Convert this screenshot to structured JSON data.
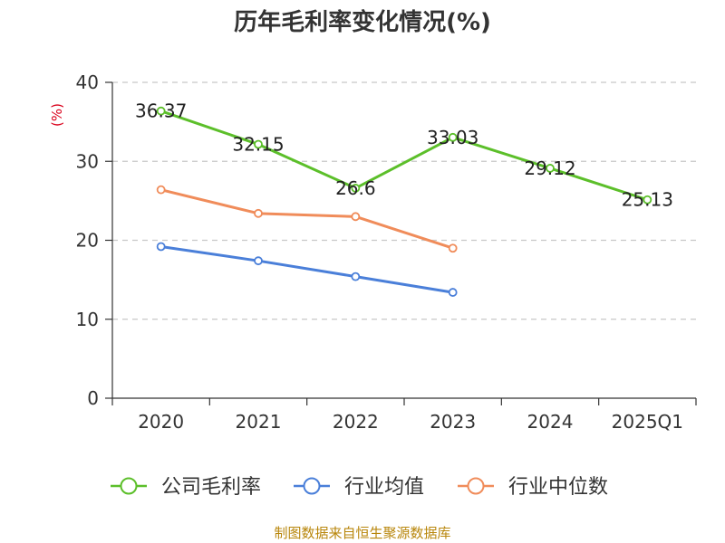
{
  "chart_data": {
    "type": "line",
    "title": "历年毛利率变化情况(%)",
    "ylabel": "(%)",
    "xlabel": "",
    "categories": [
      "2020",
      "2021",
      "2022",
      "2023",
      "2024",
      "2025Q1"
    ],
    "ylim": [
      0,
      40
    ],
    "yticks": [
      0,
      10,
      20,
      30,
      40
    ],
    "grid": "horizontal-dashed",
    "legend": "bottom-center",
    "series": [
      {
        "name": "公司毛利率",
        "color": "#5cbf2a",
        "values": [
          36.37,
          32.15,
          26.6,
          33.03,
          29.12,
          25.13
        ],
        "labels": [
          "36.37",
          "32.15",
          "26.6",
          "33.03",
          "29.12",
          "25.13"
        ]
      },
      {
        "name": "行业均值",
        "color": "#4a7fd9",
        "values": [
          19.2,
          17.4,
          15.4,
          13.4,
          null,
          null
        ]
      },
      {
        "name": "行业中位数",
        "color": "#f08c5a",
        "values": [
          26.4,
          23.4,
          23.0,
          19.0,
          null,
          null
        ]
      }
    ],
    "source": "制图数据来自恒生聚源数据库"
  }
}
